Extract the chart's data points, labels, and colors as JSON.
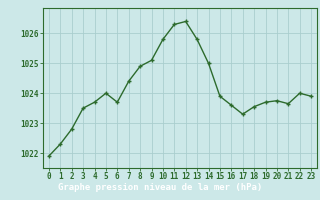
{
  "x": [
    0,
    1,
    2,
    3,
    4,
    5,
    6,
    7,
    8,
    9,
    10,
    11,
    12,
    13,
    14,
    15,
    16,
    17,
    18,
    19,
    20,
    21,
    22,
    23
  ],
  "y": [
    1021.9,
    1022.3,
    1022.8,
    1023.5,
    1023.7,
    1024.0,
    1023.7,
    1024.4,
    1024.9,
    1025.1,
    1025.8,
    1026.3,
    1026.4,
    1025.8,
    1025.0,
    1023.9,
    1023.6,
    1023.3,
    1023.55,
    1023.7,
    1023.75,
    1023.65,
    1024.0,
    1023.9
  ],
  "line_color": "#2d6b2d",
  "marker_color": "#2d6b2d",
  "bg_color": "#cce8e8",
  "grid_color": "#aacece",
  "xlabel": "Graphe pression niveau de la mer (hPa)",
  "xlabel_bg": "#2d6b2d",
  "xlabel_fg": "#ffffff",
  "ylim_min": 1021.5,
  "ylim_max": 1026.85,
  "yticks": [
    1022,
    1023,
    1024,
    1025,
    1026
  ],
  "xticks": [
    0,
    1,
    2,
    3,
    4,
    5,
    6,
    7,
    8,
    9,
    10,
    11,
    12,
    13,
    14,
    15,
    16,
    17,
    18,
    19,
    20,
    21,
    22,
    23
  ],
  "tick_fontsize": 5.5,
  "xlabel_fontsize": 6.5,
  "axis_color": "#2d6b2d",
  "spine_color": "#2d6b2d"
}
